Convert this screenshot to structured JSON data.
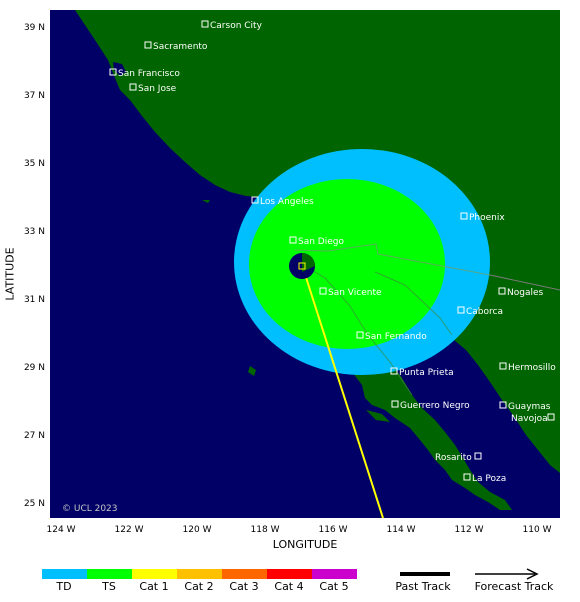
{
  "axes": {
    "ylabel": "LATITUDE",
    "xlabel": "LONGITUDE",
    "yticks": [
      "39 N",
      "37 N",
      "35 N",
      "33 N",
      "31 N",
      "29 N",
      "27 N",
      "25 N"
    ],
    "xticks": [
      "124 W",
      "122 W",
      "120 W",
      "118 W",
      "116 W",
      "114 W",
      "112 W",
      "110 W"
    ]
  },
  "cities": [
    {
      "name": "Carson City"
    },
    {
      "name": "Sacramento"
    },
    {
      "name": "San Francisco"
    },
    {
      "name": "San Jose"
    },
    {
      "name": "Los Angeles"
    },
    {
      "name": "Phoenix"
    },
    {
      "name": "San Diego"
    },
    {
      "name": "Nogales"
    },
    {
      "name": "San Vicente"
    },
    {
      "name": "Caborca"
    },
    {
      "name": "San Fernando"
    },
    {
      "name": "Hermosillo"
    },
    {
      "name": "Punta Prieta"
    },
    {
      "name": "Guerrero Negro"
    },
    {
      "name": "Guaymas"
    },
    {
      "name": "Navojoa"
    },
    {
      "name": "Rosarito"
    },
    {
      "name": "La Poza"
    }
  ],
  "copyright": "© UCL 2023",
  "legend": {
    "categories": [
      {
        "label": "TD",
        "color": "#00bfff"
      },
      {
        "label": "TS",
        "color": "#00ff00"
      },
      {
        "label": "Cat 1",
        "color": "#ffff00"
      },
      {
        "label": "Cat 2",
        "color": "#ffc000"
      },
      {
        "label": "Cat 3",
        "color": "#ff6600"
      },
      {
        "label": "Cat 4",
        "color": "#ff0000"
      },
      {
        "label": "Cat 5",
        "color": "#cc00cc"
      }
    ],
    "past_track": "Past Track",
    "forecast_track": "Forecast Track"
  },
  "colors": {
    "ocean": "#000066",
    "land": "#006400",
    "td_wind": "#00bfff",
    "ts_wind": "#00ff00",
    "track": "#ffff00",
    "storm_center": "#000066"
  }
}
